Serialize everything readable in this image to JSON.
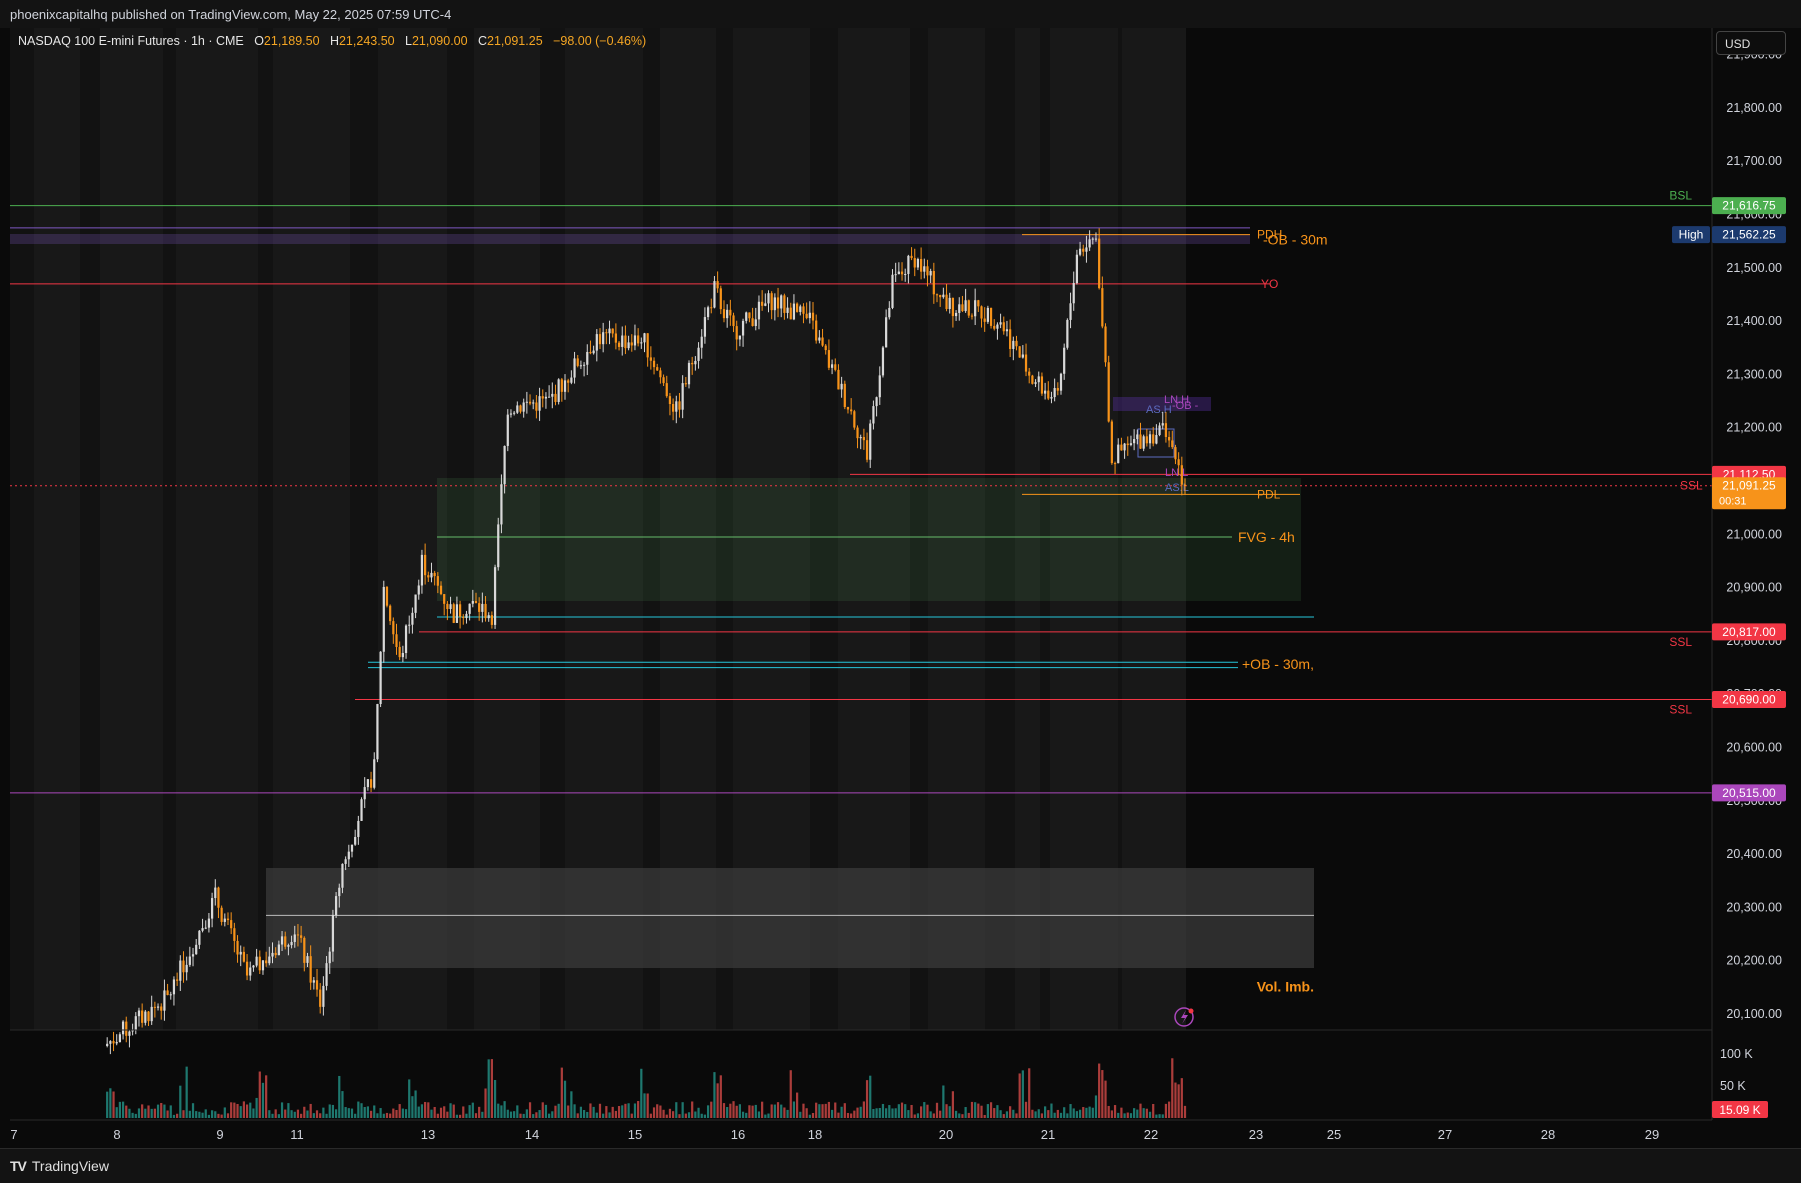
{
  "header": {
    "published": "phoenixcapitalhq published on TradingView.com, May 22, 2025 07:59 UTC-4"
  },
  "legend": {
    "symbol": "NASDAQ 100 E-mini Futures · 1h · CME",
    "o_label": "O",
    "o": "21,189.50",
    "h_label": "H",
    "h": "21,243.50",
    "l_label": "L",
    "l": "21,090.00",
    "c_label": "C",
    "c": "21,091.25",
    "change": "−98.00 (−0.46%)"
  },
  "currency_button": "USD",
  "footer": {
    "brand": "TradingView"
  },
  "colors": {
    "up": "#d9d9d9",
    "down": "#f7931a",
    "bsl": "#4caf50",
    "ssl": "#f23645",
    "purple": "#ab47bc",
    "orange": "#f7931a",
    "cyan": "#26c6da",
    "fvg": "#66bb6a"
  },
  "chart_data": {
    "type": "candlestick",
    "ylim": [
      20070,
      21950
    ],
    "y_ticks": [
      "21,900.00",
      "21,800.00",
      "21,700.00",
      "21,600.00",
      "21,500.00",
      "21,400.00",
      "21,300.00",
      "21,200.00",
      "21,100.00",
      "21,000.00",
      "20,900.00",
      "20,800.00",
      "20,700.00",
      "20,600.00",
      "20,500.00",
      "20,400.00",
      "20,300.00",
      "20,200.00",
      "20,100.00"
    ],
    "x_ticks": [
      "7",
      "8",
      "9",
      "11",
      "13",
      "14",
      "15",
      "16",
      "18",
      "20",
      "21",
      "22",
      "23",
      "25",
      "27",
      "28",
      "29"
    ],
    "price_badges": [
      {
        "label": "21,616.75",
        "value": 21616.75,
        "color": "#4caf50"
      },
      {
        "label": "21,562.25",
        "value": 21562.25,
        "color": "#1c3a6e",
        "tag": "High"
      },
      {
        "label": "21,112.50",
        "value": 21112.5,
        "color": "#f23645"
      },
      {
        "label": "21,091.25",
        "value": 21091.25,
        "color": "#f7931a",
        "timer": "00:31"
      },
      {
        "label": "20,817.00",
        "value": 20817,
        "color": "#f23645"
      },
      {
        "label": "20,690.00",
        "value": 20690,
        "color": "#f23645"
      },
      {
        "label": "20,515.00",
        "value": 20515,
        "color": "#ab47bc"
      }
    ],
    "levels": [
      {
        "label": "BSL",
        "value": 21616.75
      },
      {
        "label": "PDH",
        "value": 21562.25
      },
      {
        "label": "-OB - 30m",
        "value": 21555
      },
      {
        "label": "YO",
        "value": 21470
      },
      {
        "label": "SSL",
        "value": 21091.25
      },
      {
        "label": "PDL",
        "value": 21075
      },
      {
        "label": "FVG - 4h",
        "value": 20995
      },
      {
        "label": "SSL",
        "value": 20817
      },
      {
        "label": "+OB - 30m,",
        "value": 20757
      },
      {
        "label": "SSL",
        "value": 20690
      },
      {
        "label": "Vol. Imb.",
        "value": 20150
      }
    ],
    "small_labels": [
      "LN.H",
      "AS.H",
      "-OB -",
      "LN.L",
      "AS.L"
    ],
    "anchors": [
      [
        0,
        20040
      ],
      [
        20,
        20130
      ],
      [
        35,
        20320
      ],
      [
        45,
        20170
      ],
      [
        60,
        20260
      ],
      [
        68,
        20120
      ],
      [
        75,
        20380
      ],
      [
        85,
        20560
      ],
      [
        88,
        20900
      ],
      [
        93,
        20760
      ],
      [
        100,
        20950
      ],
      [
        110,
        20850
      ],
      [
        115,
        20870
      ],
      [
        122,
        20850
      ],
      [
        127,
        21240
      ],
      [
        140,
        21250
      ],
      [
        155,
        21370
      ],
      [
        170,
        21360
      ],
      [
        180,
        21230
      ],
      [
        192,
        21460
      ],
      [
        198,
        21380
      ],
      [
        210,
        21440
      ],
      [
        222,
        21400
      ],
      [
        235,
        21230
      ],
      [
        240,
        21150
      ],
      [
        248,
        21470
      ],
      [
        255,
        21520
      ],
      [
        265,
        21430
      ],
      [
        275,
        21420
      ],
      [
        282,
        21400
      ],
      [
        292,
        21290
      ],
      [
        300,
        21250
      ],
      [
        306,
        21530
      ],
      [
        312,
        21560
      ],
      [
        317,
        21140
      ],
      [
        326,
        21180
      ],
      [
        334,
        21200
      ],
      [
        340,
        21090
      ]
    ],
    "volume": {
      "ticks": [
        "100 K",
        "50 K"
      ],
      "last_badge": "15.09 K"
    }
  }
}
